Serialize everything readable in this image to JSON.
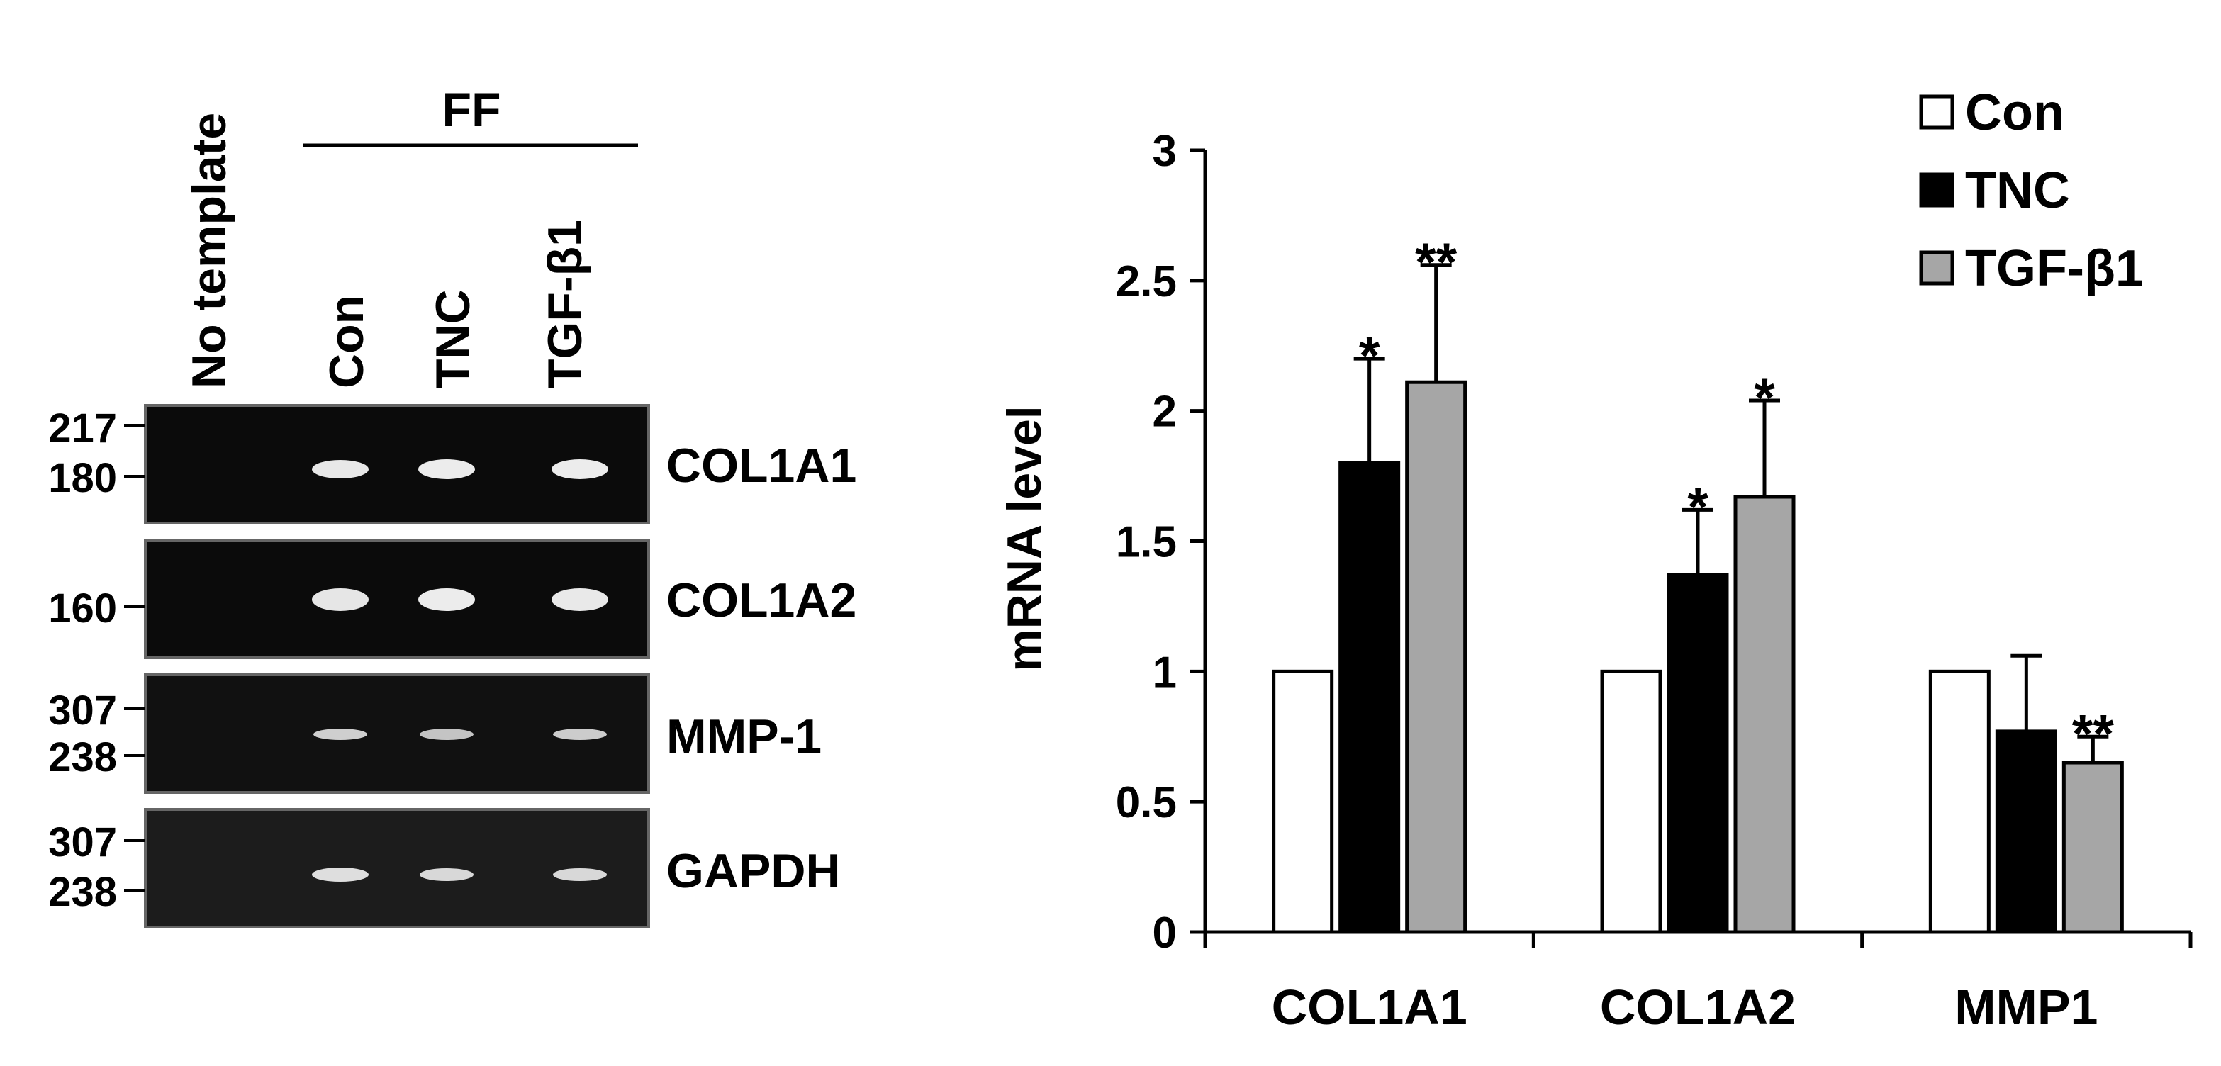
{
  "gel": {
    "lane_headers": [
      "No template",
      "Con",
      "TNC",
      "TGF-β1"
    ],
    "group_label": "FF",
    "panels": [
      {
        "gene": "COL1A1",
        "markers": [
          "217",
          "180"
        ],
        "bands": [
          0,
          1,
          1,
          1
        ]
      },
      {
        "gene": "COL1A2",
        "markers": [
          "160"
        ],
        "bands": [
          0,
          1,
          1,
          1
        ]
      },
      {
        "gene": "MMP-1",
        "markers": [
          "307",
          "238"
        ],
        "bands": [
          0,
          1,
          1,
          1
        ]
      },
      {
        "gene": "GAPDH",
        "markers": [
          "307",
          "238"
        ],
        "bands": [
          0,
          1,
          1,
          1
        ]
      }
    ]
  },
  "chart_data": {
    "type": "bar",
    "categories": [
      "COL1A1",
      "COL1A2",
      "MMP1"
    ],
    "ylabel": "mRNA level",
    "xlabel": "",
    "ylim": [
      0,
      3
    ],
    "yticks": [
      "0",
      "0.5",
      "1",
      "1.5",
      "2",
      "2.5",
      "3"
    ],
    "legend_position": "top-right",
    "series": [
      {
        "name": "Con",
        "color": "#ffffff",
        "values": [
          1.0,
          1.0,
          1.0
        ],
        "errors": [
          0,
          0,
          0
        ],
        "significance": [
          "",
          "",
          ""
        ]
      },
      {
        "name": "TNC",
        "color": "#000000",
        "values": [
          1.8,
          1.37,
          0.77
        ],
        "errors": [
          0.4,
          0.25,
          0.29
        ],
        "significance": [
          "*",
          "*",
          ""
        ]
      },
      {
        "name": "TGF-β1",
        "color": "#a6a6a6",
        "values": [
          2.11,
          1.67,
          0.65
        ],
        "errors": [
          0.45,
          0.37,
          0.1
        ],
        "significance": [
          "**",
          "*",
          "**"
        ]
      }
    ]
  }
}
